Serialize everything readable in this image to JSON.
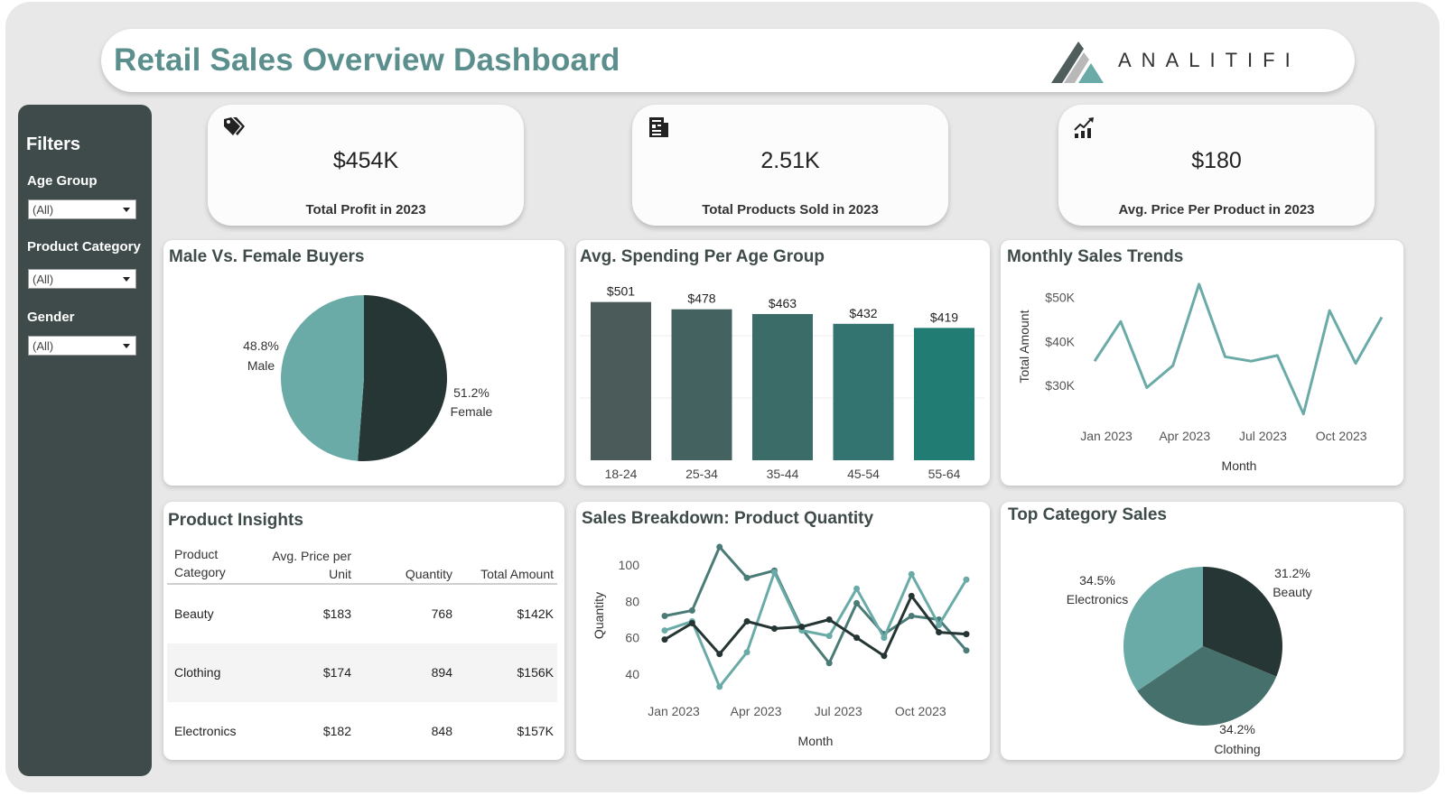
{
  "header": {
    "title": "Retail Sales Overview Dashboard",
    "logo_text": "ANALITIFI",
    "logo_colors": [
      "#4f5d5c",
      "#b8b8b8",
      "#6aaba7"
    ]
  },
  "filters": {
    "title": "Filters",
    "items": [
      {
        "label": "Age Group",
        "value": "(All)"
      },
      {
        "label": "Product Category",
        "value": "(All)"
      },
      {
        "label": "Gender",
        "value": "(All)"
      }
    ]
  },
  "kpis": [
    {
      "icon": "price-tag-icon",
      "value": "$454K",
      "label": "Total Profit in 2023"
    },
    {
      "icon": "receipt-icon",
      "value": "2.51K",
      "label": "Total Products Sold in 2023"
    },
    {
      "icon": "growth-chart-icon",
      "value": "$180",
      "label": "Avg. Price Per Product in 2023"
    }
  ],
  "gender_chart": {
    "title": "Male Vs. Female Buyers",
    "chart_data": {
      "type": "pie",
      "slices": [
        {
          "label": "Female",
          "percent_label": "51.2%",
          "value": 51.2,
          "color": "#263634"
        },
        {
          "label": "Male",
          "percent_label": "48.8%",
          "value": 48.8,
          "color": "#6aaba7"
        }
      ]
    }
  },
  "age_chart": {
    "title": "Avg. Spending Per Age Group",
    "chart_data": {
      "type": "bar",
      "categories": [
        "18-24",
        "25-34",
        "35-44",
        "45-54",
        "55-64"
      ],
      "values": [
        501,
        478,
        463,
        432,
        419
      ],
      "value_labels": [
        "$501",
        "$478",
        "$463",
        "$432",
        "$419"
      ],
      "colors": [
        "#4b5b5a",
        "#44625f",
        "#3c6c68",
        "#337470",
        "#217d74"
      ],
      "ylim": [
        0,
        520
      ]
    }
  },
  "monthly_chart": {
    "title": "Monthly Sales Trends",
    "chart_data": {
      "type": "line",
      "xlabel": "Month",
      "ylabel": "Total Amount",
      "x_ticks": [
        "Jan 2023",
        "Apr 2023",
        "Jul 2023",
        "Oct 2023"
      ],
      "y_ticks": [
        "$30K",
        "$40K",
        "$50K"
      ],
      "y_tick_values": [
        30000,
        40000,
        50000
      ],
      "ylim": [
        22000,
        54000
      ],
      "color": "#6aaba7",
      "values": [
        35500,
        44500,
        29500,
        34500,
        53000,
        36500,
        35500,
        36800,
        23500,
        47000,
        35000,
        45500
      ]
    }
  },
  "product_table": {
    "title": "Product Insights",
    "columns": [
      "Product Category",
      "Avg. Price per Unit",
      "Quantity",
      "Total Amount"
    ],
    "rows": [
      {
        "category": "Beauty",
        "price": "$183",
        "quantity": "768",
        "total": "$142K"
      },
      {
        "category": "Clothing",
        "price": "$174",
        "quantity": "894",
        "total": "$156K"
      },
      {
        "category": "Electronics",
        "price": "$182",
        "quantity": "848",
        "total": "$157K"
      }
    ]
  },
  "quantity_chart": {
    "title": "Sales Breakdown: Product Quantity",
    "chart_data": {
      "type": "line",
      "xlabel": "Month",
      "ylabel": "Quantity",
      "x_ticks": [
        "Jan 2023",
        "Apr 2023",
        "Jul 2023",
        "Oct 2023"
      ],
      "y_ticks": [
        40,
        60,
        80,
        100
      ],
      "ylim": [
        25,
        115
      ],
      "series": [
        {
          "color": "#4b7b77",
          "values": [
            72,
            75,
            110,
            93,
            97,
            65,
            46,
            79,
            62,
            72,
            70,
            53
          ]
        },
        {
          "color": "#6aaba7",
          "values": [
            64,
            69,
            33,
            52,
            96,
            64,
            61,
            87,
            60,
            95,
            67,
            92
          ]
        },
        {
          "color": "#253533",
          "values": [
            59,
            68,
            51,
            69,
            65,
            66,
            70,
            60,
            50,
            83,
            63,
            62
          ]
        }
      ]
    }
  },
  "category_chart": {
    "title": "Top Category Sales",
    "chart_data": {
      "type": "pie",
      "slices": [
        {
          "label": "Beauty",
          "percent_label": "31.2%",
          "value": 31.2,
          "color": "#263634"
        },
        {
          "label": "Clothing",
          "percent_label": "34.2%",
          "value": 34.2,
          "color": "#46706c"
        },
        {
          "label": "Electronics",
          "percent_label": "34.5%",
          "value": 34.5,
          "color": "#6aaba7"
        }
      ]
    }
  }
}
